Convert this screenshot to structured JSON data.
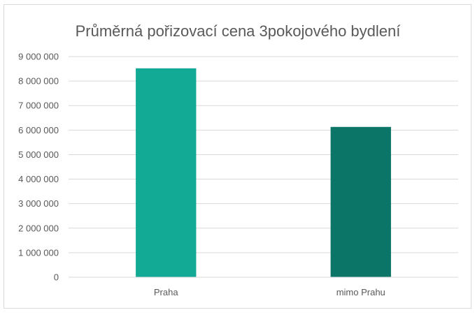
{
  "chart_data": {
    "type": "bar",
    "title": "Průměrná pořizovací cena 3pokojového bydlení",
    "categories": [
      "Praha",
      "mimo Prahu"
    ],
    "values": [
      8520000,
      6130000
    ],
    "colors": [
      "#12a995",
      "#0b7567"
    ],
    "ylim": [
      0,
      9000000
    ],
    "yticks": [
      0,
      1000000,
      2000000,
      3000000,
      4000000,
      5000000,
      6000000,
      7000000,
      8000000,
      9000000
    ],
    "ytick_labels": [
      "0",
      "1 000 000",
      "2 000 000",
      "3 000 000",
      "4 000 000",
      "5 000 000",
      "6 000 000",
      "7 000 000",
      "8 000 000",
      "9 000 000"
    ],
    "grid": true,
    "legend": false,
    "xlabel": "",
    "ylabel": ""
  }
}
